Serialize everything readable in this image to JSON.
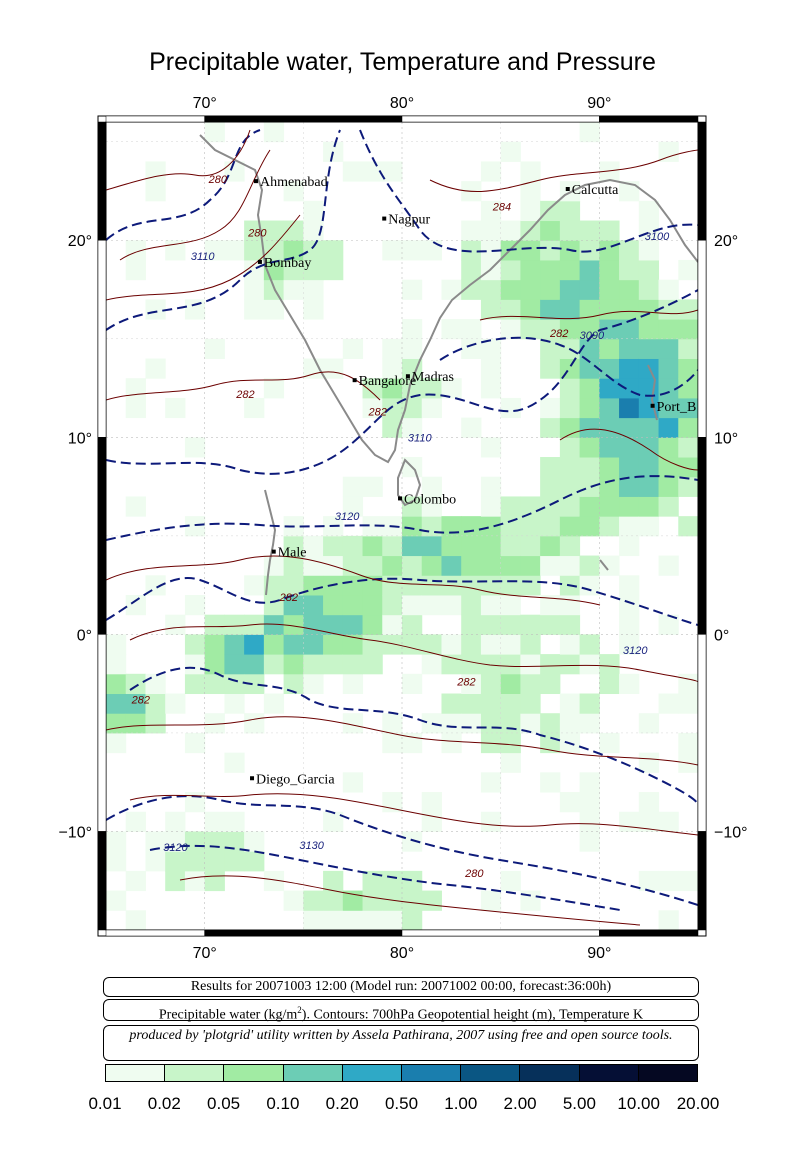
{
  "title": "Precipitable water, Temperature and Pressure",
  "map": {
    "lon_range": [
      65,
      95
    ],
    "lat_range": [
      -15,
      26
    ],
    "lon_ticks": [
      {
        "value": 70,
        "label": "70°"
      },
      {
        "value": 80,
        "label": "80°"
      },
      {
        "value": 90,
        "label": "90°"
      }
    ],
    "lat_ticks": [
      {
        "value": 20,
        "label": "20°"
      },
      {
        "value": 10,
        "label": "10°"
      },
      {
        "value": 0,
        "label": "0°"
      },
      {
        "value": -10,
        "label": "−10°"
      }
    ],
    "cities": [
      {
        "name": "Ahmenabad",
        "lon": 72.6,
        "lat": 23.0
      },
      {
        "name": "Nagpur",
        "lon": 79.1,
        "lat": 21.1
      },
      {
        "name": "Calcutta",
        "lon": 88.4,
        "lat": 22.6
      },
      {
        "name": "Bombay",
        "lon": 72.8,
        "lat": 18.9
      },
      {
        "name": "Bangalore",
        "lon": 77.6,
        "lat": 12.9
      },
      {
        "name": "Madras",
        "lon": 80.3,
        "lat": 13.1
      },
      {
        "name": "Port_Blair",
        "label": "Port_B",
        "lon": 92.7,
        "lat": 11.6
      },
      {
        "name": "Colombo",
        "lon": 79.9,
        "lat": 6.9
      },
      {
        "name": "Male",
        "lon": 73.5,
        "lat": 4.2
      },
      {
        "name": "Diego_Garcia",
        "lon": 72.4,
        "lat": -7.3
      }
    ],
    "contour_labels": [
      {
        "text": "3110",
        "lon": 69.3,
        "lat": 19.0,
        "kind": "height"
      },
      {
        "text": "3100",
        "lon": 92.3,
        "lat": 20.0,
        "kind": "height"
      },
      {
        "text": "3090",
        "lon": 89.0,
        "lat": 15.0,
        "kind": "height"
      },
      {
        "text": "3110",
        "lon": 80.3,
        "lat": 9.8,
        "kind": "height"
      },
      {
        "text": "3120",
        "lon": 76.6,
        "lat": 5.8,
        "kind": "height"
      },
      {
        "text": "3120",
        "lon": 91.2,
        "lat": -1.0,
        "kind": "height"
      },
      {
        "text": "3120",
        "lon": 67.9,
        "lat": -11.0,
        "kind": "height"
      },
      {
        "text": "3130",
        "lon": 74.8,
        "lat": -10.9,
        "kind": "height"
      },
      {
        "text": "280",
        "lon": 70.2,
        "lat": 22.9,
        "kind": "temperature"
      },
      {
        "text": "280",
        "lon": 72.2,
        "lat": 20.2,
        "kind": "temperature"
      },
      {
        "text": "284",
        "lon": 84.6,
        "lat": 21.5,
        "kind": "temperature"
      },
      {
        "text": "282",
        "lon": 87.5,
        "lat": 15.1,
        "kind": "temperature"
      },
      {
        "text": "282",
        "lon": 71.6,
        "lat": 12.0,
        "kind": "temperature"
      },
      {
        "text": "282",
        "lon": 78.3,
        "lat": 11.1,
        "kind": "temperature"
      },
      {
        "text": "282",
        "lon": 73.8,
        "lat": 1.7,
        "kind": "temperature"
      },
      {
        "text": "282",
        "lon": 82.8,
        "lat": -2.6,
        "kind": "temperature"
      },
      {
        "text": "282",
        "lon": 66.3,
        "lat": -3.5,
        "kind": "temperature"
      },
      {
        "text": "280",
        "lon": 83.2,
        "lat": -12.3,
        "kind": "temperature"
      }
    ]
  },
  "info": {
    "results_line": "Results for 20071003 12:00 (Model run: 20071002 00:00, forecast:36:00h)",
    "legend_line_prefix": "Precipitable water (kg/m",
    "legend_line_sup": "2",
    "legend_line_suffix": ").  Contours: 700hPa Geopotential height (m), Temperature K",
    "credit_line": "produced by 'plotgrid' utility written by Assela Pathirana, 2007 using free and open source tools."
  },
  "colorbar": {
    "colors": [
      "#effcf0",
      "#c8f5c9",
      "#a1eba3",
      "#6ccdb5",
      "#2fa9c6",
      "#1a7eae",
      "#0a5683",
      "#06305a",
      "#050f35",
      "#050822",
      "#000010"
    ],
    "labels": [
      "0.01",
      "0.02",
      "0.05",
      "0.10",
      "0.20",
      "0.50",
      "1.00",
      "2.00",
      "5.00",
      "10.00",
      "20.00"
    ]
  }
}
